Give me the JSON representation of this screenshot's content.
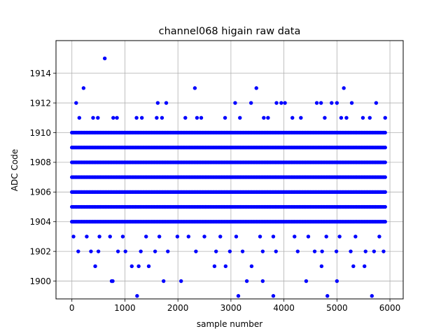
{
  "chart_data": {
    "type": "scatter",
    "title": "channel068 higain raw data",
    "xlabel": "sample number",
    "ylabel": "ADC Code",
    "xlim": [
      -300,
      6250
    ],
    "ylim": [
      1898.8,
      1916.2
    ],
    "xticks": [
      0,
      1000,
      2000,
      3000,
      4000,
      5000,
      6000
    ],
    "yticks": [
      1900,
      1902,
      1904,
      1906,
      1908,
      1910,
      1912,
      1914
    ],
    "grid": true,
    "marker_color": "#0000ff",
    "x_range": [
      0,
      5930
    ],
    "dense_levels": [
      1904,
      1905,
      1906,
      1907,
      1908,
      1909,
      1910
    ],
    "series": [
      {
        "name": "",
        "points": [
          [
            620,
            1915
          ],
          [
            80,
            1912
          ],
          [
            1620,
            1912
          ],
          [
            1780,
            1912
          ],
          [
            3080,
            1912
          ],
          [
            3380,
            1912
          ],
          [
            3860,
            1912
          ],
          [
            3950,
            1912
          ],
          [
            4020,
            1912
          ],
          [
            4620,
            1912
          ],
          [
            4700,
            1912
          ],
          [
            4900,
            1912
          ],
          [
            5000,
            1912
          ],
          [
            5280,
            1912
          ],
          [
            5740,
            1912
          ],
          [
            220,
            1913
          ],
          [
            2320,
            1913
          ],
          [
            3480,
            1913
          ],
          [
            5130,
            1913
          ],
          [
            140,
            1911
          ],
          [
            400,
            1911
          ],
          [
            490,
            1911
          ],
          [
            780,
            1911
          ],
          [
            850,
            1911
          ],
          [
            1220,
            1911
          ],
          [
            1320,
            1911
          ],
          [
            1600,
            1911
          ],
          [
            1700,
            1911
          ],
          [
            2140,
            1911
          ],
          [
            2360,
            1911
          ],
          [
            2440,
            1911
          ],
          [
            2890,
            1911
          ],
          [
            3170,
            1911
          ],
          [
            3620,
            1911
          ],
          [
            3700,
            1911
          ],
          [
            4160,
            1911
          ],
          [
            4320,
            1911
          ],
          [
            4770,
            1911
          ],
          [
            5080,
            1911
          ],
          [
            5180,
            1911
          ],
          [
            5490,
            1911
          ],
          [
            5620,
            1911
          ],
          [
            5910,
            1911
          ],
          [
            30,
            1903
          ],
          [
            280,
            1903
          ],
          [
            520,
            1903
          ],
          [
            720,
            1903
          ],
          [
            960,
            1903
          ],
          [
            1400,
            1903
          ],
          [
            1650,
            1903
          ],
          [
            1990,
            1903
          ],
          [
            2200,
            1903
          ],
          [
            2500,
            1903
          ],
          [
            2800,
            1903
          ],
          [
            3100,
            1903
          ],
          [
            3550,
            1903
          ],
          [
            3800,
            1903
          ],
          [
            4200,
            1903
          ],
          [
            4460,
            1903
          ],
          [
            4800,
            1903
          ],
          [
            5050,
            1903
          ],
          [
            5350,
            1903
          ],
          [
            5800,
            1903
          ],
          [
            120,
            1902
          ],
          [
            360,
            1902
          ],
          [
            500,
            1902
          ],
          [
            870,
            1902
          ],
          [
            1010,
            1902
          ],
          [
            1300,
            1902
          ],
          [
            1570,
            1902
          ],
          [
            1810,
            1902
          ],
          [
            2340,
            1902
          ],
          [
            2720,
            1902
          ],
          [
            2980,
            1902
          ],
          [
            3220,
            1902
          ],
          [
            3600,
            1902
          ],
          [
            3850,
            1902
          ],
          [
            4260,
            1902
          ],
          [
            4580,
            1902
          ],
          [
            4720,
            1902
          ],
          [
            4990,
            1902
          ],
          [
            5260,
            1902
          ],
          [
            5540,
            1902
          ],
          [
            5700,
            1902
          ],
          [
            5880,
            1902
          ],
          [
            440,
            1901
          ],
          [
            1130,
            1901
          ],
          [
            1260,
            1901
          ],
          [
            1450,
            1901
          ],
          [
            2690,
            1901
          ],
          [
            2900,
            1901
          ],
          [
            3390,
            1901
          ],
          [
            4710,
            1901
          ],
          [
            5310,
            1901
          ],
          [
            5520,
            1901
          ],
          [
            750,
            1900
          ],
          [
            770,
            1900
          ],
          [
            1730,
            1900
          ],
          [
            2060,
            1900
          ],
          [
            3300,
            1900
          ],
          [
            3600,
            1900
          ],
          [
            4420,
            1900
          ],
          [
            5000,
            1900
          ],
          [
            1230,
            1899
          ],
          [
            3140,
            1899
          ],
          [
            3800,
            1899
          ],
          [
            4820,
            1899
          ],
          [
            5660,
            1899
          ]
        ]
      }
    ]
  }
}
